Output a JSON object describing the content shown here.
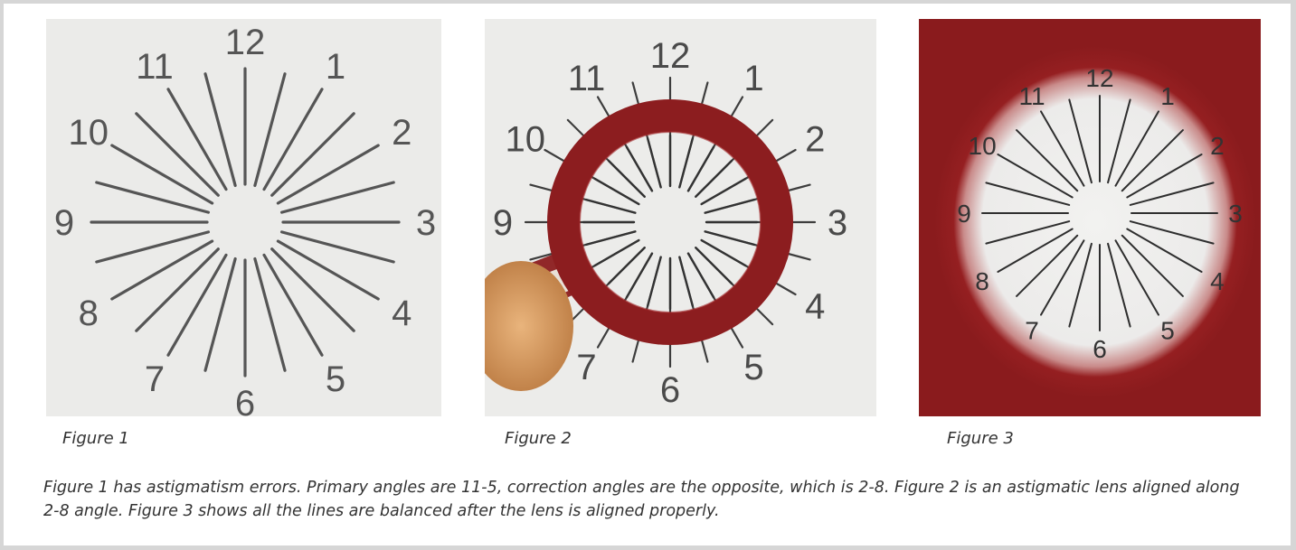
{
  "clock_numbers": [
    "12",
    "1",
    "2",
    "3",
    "4",
    "5",
    "6",
    "7",
    "8",
    "9",
    "10",
    "11"
  ],
  "captions": {
    "figure1": "Figure 1",
    "figure2": "Figure 2",
    "figure3": "Figure 3"
  },
  "description": "Figure 1 has astigmatism errors. Primary angles are 11-5, correction angles are the opposite, which is 2-8. Figure 2 is an astigmatic lens aligned along 2-8 angle. Figure 3 shows all the lines are balanced after the lens is aligned properly.",
  "colors": {
    "background_outer": "#d6d6d6",
    "chart_bg": "#ebebe9",
    "lens_red": "#8c1d1f",
    "line_dark": "#3a3a3a",
    "skin": "#d9a067"
  }
}
